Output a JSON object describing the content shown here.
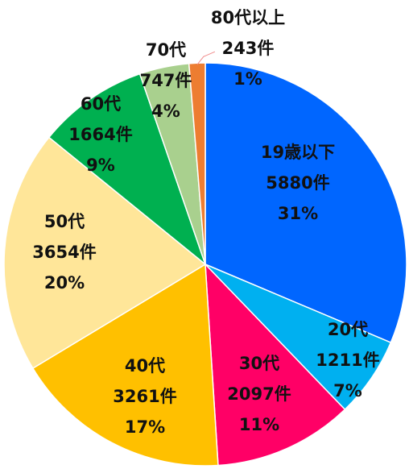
{
  "chart_data": {
    "type": "pie",
    "start_angle_deg": 0,
    "direction": "clockwise",
    "slices": [
      {
        "label": "19歳以下",
        "count_label": "5880件",
        "percent_label": "31%",
        "value": 5880,
        "color": "#0066FF"
      },
      {
        "label": "20代",
        "count_label": "1211件",
        "percent_label": "7%",
        "value": 1211,
        "color": "#00B0F0"
      },
      {
        "label": "30代",
        "count_label": "2097件",
        "percent_label": "11%",
        "value": 2097,
        "color": "#FF0066"
      },
      {
        "label": "40代",
        "count_label": "3261件",
        "percent_label": "17%",
        "value": 3261,
        "color": "#FFC000"
      },
      {
        "label": "50代",
        "count_label": "3654件",
        "percent_label": "20%",
        "value": 3654,
        "color": "#FFE699"
      },
      {
        "label": "60代",
        "count_label": "1664件",
        "percent_label": "9%",
        "value": 1664,
        "color": "#00B050"
      },
      {
        "label": "70代",
        "count_label": "747件",
        "percent_label": "4%",
        "value": 747,
        "color": "#A9D08E"
      },
      {
        "label": "80代以上",
        "count_label": "243件",
        "percent_label": "1%",
        "value": 243,
        "color": "#ED7D31"
      }
    ]
  }
}
